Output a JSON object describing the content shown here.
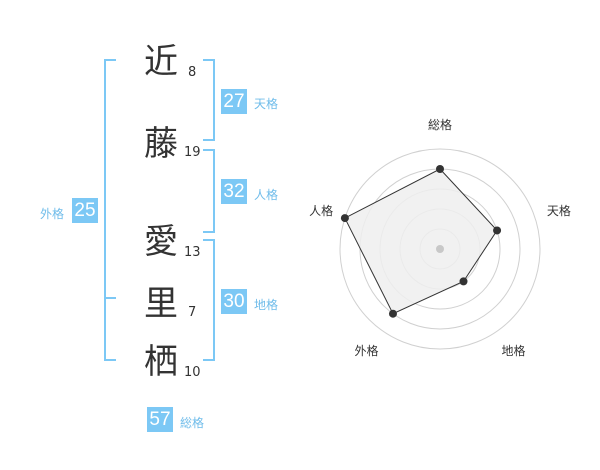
{
  "name": [
    {
      "char": "近",
      "strokes": "8"
    },
    {
      "char": "藤",
      "strokes": "19"
    },
    {
      "char": "愛",
      "strokes": "13"
    },
    {
      "char": "里",
      "strokes": "7"
    },
    {
      "char": "栖",
      "strokes": "10"
    }
  ],
  "fortunes": {
    "tenkaku": {
      "label": "天格",
      "value": "27"
    },
    "jinkaku": {
      "label": "人格",
      "value": "32"
    },
    "chikaku": {
      "label": "地格",
      "value": "30"
    },
    "gaikaku": {
      "label": "外格",
      "value": "25"
    },
    "soukaku": {
      "label": "総格",
      "value": "57"
    }
  },
  "colors": {
    "accent": "#7cc8f5",
    "radar_fill": "#efefef",
    "radar_line": "#333333"
  },
  "chart_data": {
    "type": "radar",
    "axes": [
      "総格",
      "天格",
      "地格",
      "外格",
      "人格"
    ],
    "values": [
      4,
      3,
      2,
      4,
      5
    ],
    "rmax": 5,
    "rings": 5
  }
}
